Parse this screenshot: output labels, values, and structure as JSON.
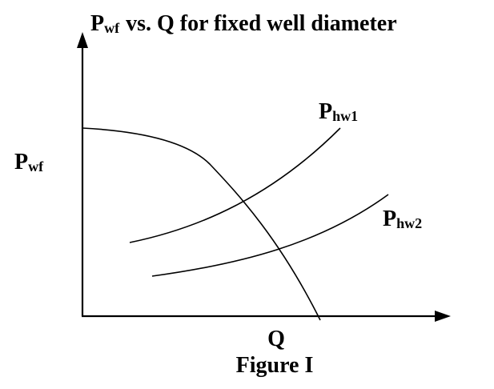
{
  "title": {
    "base": "P",
    "sub": "wf",
    "rest": "vs. Q for fixed well diameter"
  },
  "y_label": {
    "base": "P",
    "sub": "wf"
  },
  "x_label": "Q",
  "curves": [
    {
      "base": "P",
      "sub": "hw1"
    },
    {
      "base": "P",
      "sub": "hw2"
    }
  ],
  "caption": "Figure I"
}
